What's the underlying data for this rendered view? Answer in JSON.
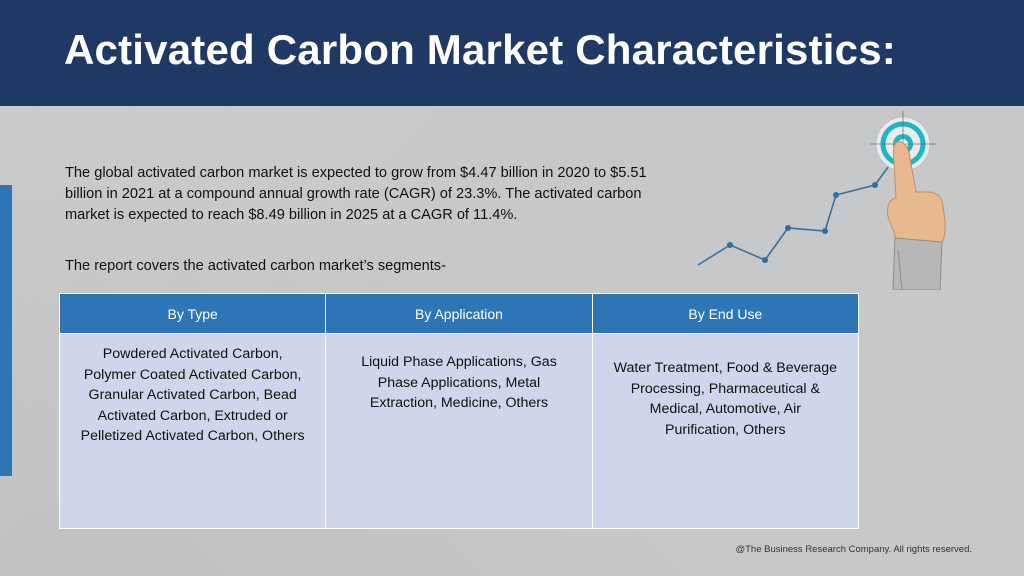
{
  "header": {
    "title": "Activated Carbon Market Characteristics:"
  },
  "body": {
    "paragraph": "The global activated carbon market is expected to grow from $4.47 billion in 2020 to $5.51 billion in 2021 at a compound annual growth rate (CAGR) of 23.3%. The activated carbon market is expected to reach $8.49 billion in 2025 at a CAGR of 11.4%.",
    "segments_intro": "The report covers the activated carbon market’s segments-"
  },
  "segments_table": {
    "headers": [
      "By Type",
      "By Application",
      "By End Use"
    ],
    "cells": [
      "Powdered Activated Carbon, Polymer Coated Activated Carbon, Granular Activated Carbon, Bead Activated Carbon, Extruded or Pelletized Activated Carbon, Others",
      "Liquid Phase Applications, Gas Phase Applications, Metal Extraction, Medicine, Others",
      "Water Treatment, Food & Beverage Processing, Pharmaceutical & Medical, Automotive, Air Purification, Others"
    ]
  },
  "footer": {
    "copyright": "@The Business Research Company. All rights reserved."
  },
  "colors": {
    "header_bg": "#203864",
    "accent_blue": "#2e75b6",
    "table_cell_bg": "#cfd5ea",
    "target_teal": "#1fb5c4"
  },
  "graphic": {
    "icon": "growth-target-icon"
  }
}
